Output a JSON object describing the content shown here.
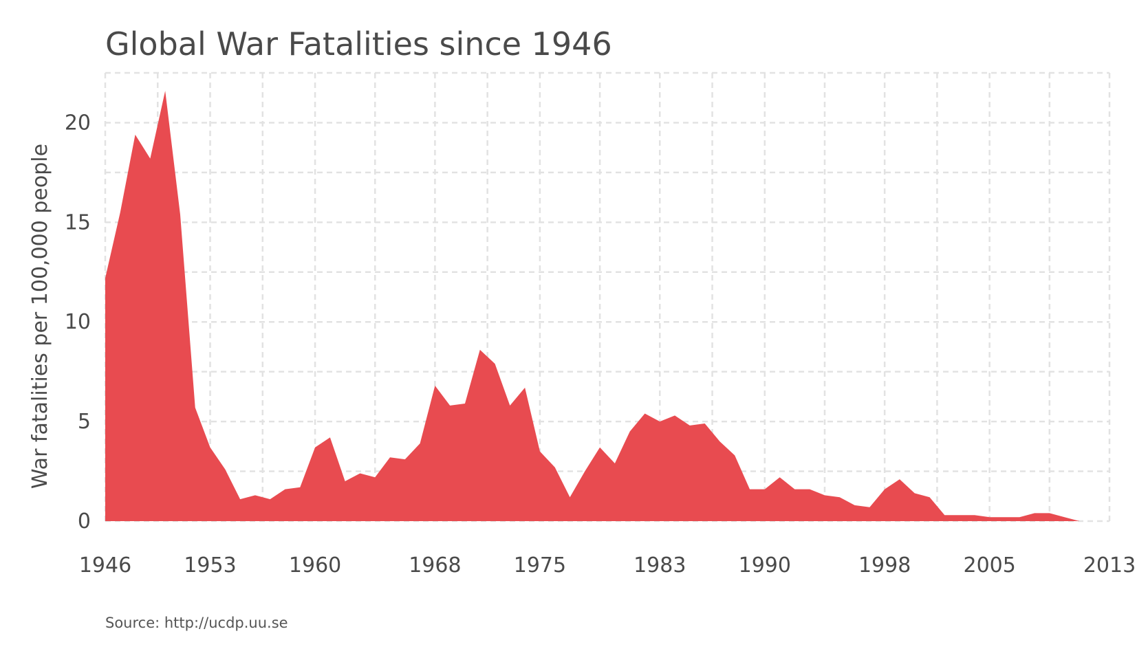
{
  "chart_data": {
    "type": "area",
    "title": "Global War Fatalities since 1946",
    "xlabel": "",
    "ylabel": "War fatalities per 100,000 people",
    "source": "Source: http://ucdp.uu.se",
    "xlim": [
      1946,
      2013
    ],
    "ylim": [
      0,
      22.5
    ],
    "x_ticks": [
      1946,
      1953,
      1960,
      1968,
      1975,
      1983,
      1990,
      1998,
      2005,
      2013
    ],
    "x_tick_labels": [
      "1946",
      "1953",
      "1960",
      "1968",
      "1975",
      "1983",
      "1990",
      "1998",
      "2005",
      "2013"
    ],
    "y_ticks": [
      0,
      5,
      10,
      15,
      20
    ],
    "y_tick_labels": [
      "0",
      "5",
      "10",
      "15",
      "20"
    ],
    "grid": true,
    "color": "#e8474c",
    "x": [
      1946,
      1947,
      1948,
      1949,
      1950,
      1951,
      1952,
      1953,
      1954,
      1955,
      1956,
      1957,
      1958,
      1959,
      1960,
      1961,
      1962,
      1963,
      1964,
      1965,
      1966,
      1967,
      1968,
      1969,
      1970,
      1971,
      1972,
      1973,
      1974,
      1975,
      1976,
      1977,
      1978,
      1979,
      1980,
      1981,
      1982,
      1983,
      1984,
      1985,
      1986,
      1987,
      1988,
      1989,
      1990,
      1991,
      1992,
      1993,
      1994,
      1995,
      1996,
      1997,
      1998,
      1999,
      2000,
      2001,
      2002,
      2003,
      2004,
      2005,
      2006,
      2007,
      2008,
      2009,
      2010,
      2011,
      2012,
      2013
    ],
    "values": [
      12.2,
      15.5,
      19.4,
      18.2,
      21.6,
      15.4,
      5.7,
      3.7,
      2.6,
      1.1,
      1.3,
      1.1,
      1.6,
      1.7,
      3.7,
      4.2,
      2.0,
      2.4,
      2.2,
      3.2,
      3.1,
      3.9,
      6.8,
      5.8,
      5.9,
      8.6,
      7.9,
      5.8,
      6.7,
      3.5,
      2.7,
      1.2,
      2.5,
      3.7,
      2.9,
      4.5,
      5.4,
      5.0,
      5.3,
      4.8,
      4.9,
      4.0,
      3.3,
      1.6,
      1.6,
      2.2,
      1.6,
      1.6,
      1.3,
      1.2,
      0.8,
      0.7,
      1.6,
      2.1,
      1.4,
      1.2,
      0.3,
      0.3,
      0.3,
      0.2,
      0.2,
      0.2,
      0.4,
      0.4,
      0.2,
      0.0,
      0.0,
      0.0
    ]
  }
}
